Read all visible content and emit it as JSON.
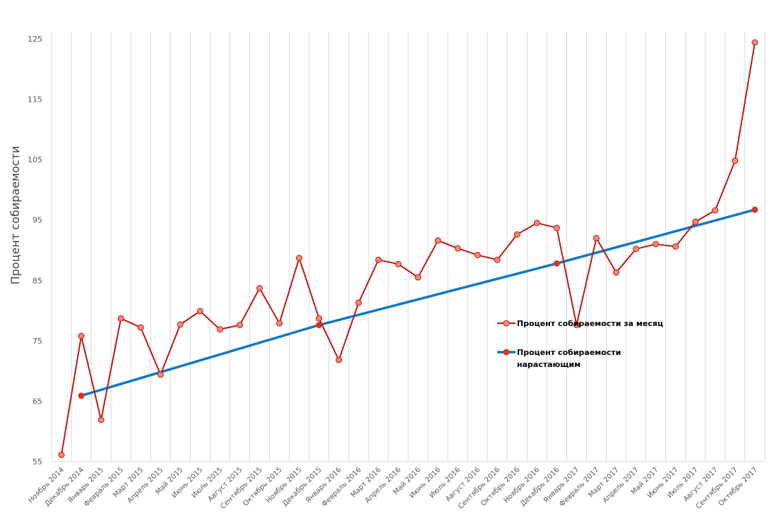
{
  "chart_data": {
    "type": "line",
    "title": "",
    "xlabel": "",
    "ylabel": "Процент собираемости",
    "ylim": [
      55,
      125
    ],
    "yticks": [
      55,
      65,
      75,
      85,
      95,
      105,
      115,
      125
    ],
    "grid": "vertical",
    "legend_placement": "center-right",
    "categories": [
      "Ноябрь 2014",
      "Декабрь 2014",
      "Январь 2015",
      "Февраль 2015",
      "Март 2015",
      "Апрель 2015",
      "Май 2015",
      "Июнь 2015",
      "Июль 2015",
      "Август 2015",
      "Сентябрь 2015",
      "Октябрь 2015",
      "Ноябрь 2015",
      "Декабрь 2015",
      "Январь 2016",
      "Февраль 2016",
      "Март 2016",
      "Апрель 2016",
      "Май 2016",
      "Июнь 2016",
      "Июль 2016",
      "Август 2016",
      "Сентябрь 2016",
      "Октябрь 2016",
      "Ноябрь 2016",
      "Декабрь 2016",
      "Январь 2017",
      "Февраль 2017",
      "Март 2017",
      "Апрель 2017",
      "Май 2017",
      "Июнь 2017",
      "Июль 2017",
      "Август 2017",
      "Сентябрь 2017",
      "Октябрь 2017"
    ],
    "series": [
      {
        "name": "Процент собираемости  за месяц",
        "color": "#c0180c",
        "marker_color": "#f4877c",
        "values": [
          56.1,
          75.8,
          61.9,
          78.7,
          77.2,
          69.4,
          77.7,
          79.9,
          76.9,
          77.6,
          83.7,
          77.9,
          88.7,
          78.7,
          71.8,
          81.3,
          88.4,
          87.7,
          85.5,
          91.6,
          90.3,
          89.2,
          88.4,
          92.6,
          94.5,
          93.7,
          77.6,
          92.0,
          86.3,
          90.2,
          91.0,
          90.6,
          94.7,
          96.6,
          104.8,
          124.4
        ]
      },
      {
        "name": "Процент собираемости нарастающим",
        "name_lines": [
          "Процент собираемости",
          "нарастающим"
        ],
        "color": "#0f78c8",
        "marker_color": "#e0301e",
        "values": [
          null,
          65.9,
          null,
          null,
          null,
          null,
          null,
          null,
          null,
          null,
          null,
          null,
          null,
          77.6,
          null,
          null,
          null,
          null,
          null,
          null,
          null,
          null,
          null,
          null,
          null,
          87.8,
          null,
          null,
          null,
          null,
          null,
          null,
          null,
          null,
          null,
          96.7
        ]
      }
    ]
  }
}
